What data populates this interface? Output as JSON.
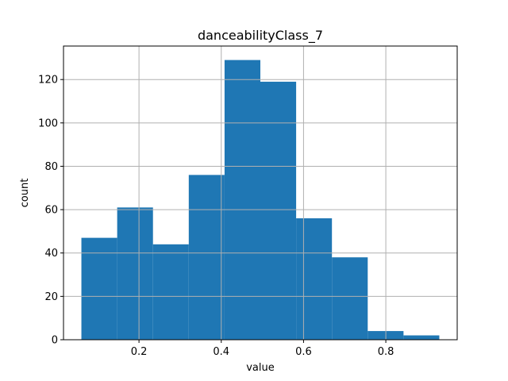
{
  "chart_data": {
    "type": "bar",
    "title": "danceabilityClass_7",
    "xlabel": "value",
    "ylabel": "count",
    "bins": [
      {
        "start": 0.06,
        "end": 0.147,
        "count": 47
      },
      {
        "start": 0.147,
        "end": 0.234,
        "count": 61
      },
      {
        "start": 0.234,
        "end": 0.321,
        "count": 44
      },
      {
        "start": 0.321,
        "end": 0.408,
        "count": 76
      },
      {
        "start": 0.408,
        "end": 0.495,
        "count": 129
      },
      {
        "start": 0.495,
        "end": 0.582,
        "count": 119
      },
      {
        "start": 0.582,
        "end": 0.669,
        "count": 56
      },
      {
        "start": 0.669,
        "end": 0.756,
        "count": 38
      },
      {
        "start": 0.756,
        "end": 0.843,
        "count": 4
      },
      {
        "start": 0.843,
        "end": 0.93,
        "count": 2
      }
    ],
    "xlim": [
      0.0165,
      0.9735
    ],
    "ylim": [
      0,
      135.45
    ],
    "xticks": [
      0.2,
      0.4,
      0.6,
      0.8
    ],
    "xtick_labels": [
      "0.2",
      "0.4",
      "0.6",
      "0.8"
    ],
    "yticks": [
      0,
      20,
      40,
      60,
      80,
      100,
      120
    ],
    "ytick_labels": [
      "0",
      "20",
      "40",
      "60",
      "80",
      "100",
      "120"
    ],
    "grid": true,
    "bar_color": "#1f77b4",
    "grid_color": "#b0b0b0"
  }
}
